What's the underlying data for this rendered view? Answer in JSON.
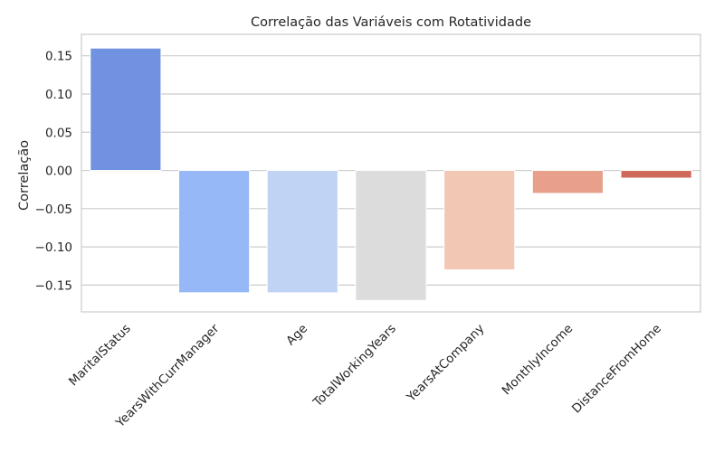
{
  "chart_data": {
    "type": "bar",
    "title": "Correlação das Variáveis com Rotatividade",
    "xlabel": "",
    "ylabel": "Correlação",
    "categories": [
      "MaritalStatus",
      "YearsWithCurrManager",
      "Age",
      "TotalWorkingYears",
      "YearsAtCompany",
      "MonthlyIncome",
      "DistanceFromHome"
    ],
    "values": [
      0.16,
      -0.16,
      -0.16,
      -0.17,
      -0.13,
      -0.03,
      -0.01
    ],
    "colors": [
      "#7092e0",
      "#97b8f6",
      "#c0d3f5",
      "#dcdcdc",
      "#f2c7b4",
      "#e8a08a",
      "#cf6a5b"
    ],
    "ylim": [
      -0.185,
      0.178
    ],
    "yticks": [
      0.15,
      0.1,
      0.05,
      0.0,
      -0.05,
      -0.1,
      -0.15
    ],
    "ytick_labels": [
      "0.15",
      "0.10",
      "0.05",
      "0.00",
      "−0.05",
      "−0.10",
      "−0.15"
    ],
    "grid": true,
    "x_tick_rotation": 45
  }
}
